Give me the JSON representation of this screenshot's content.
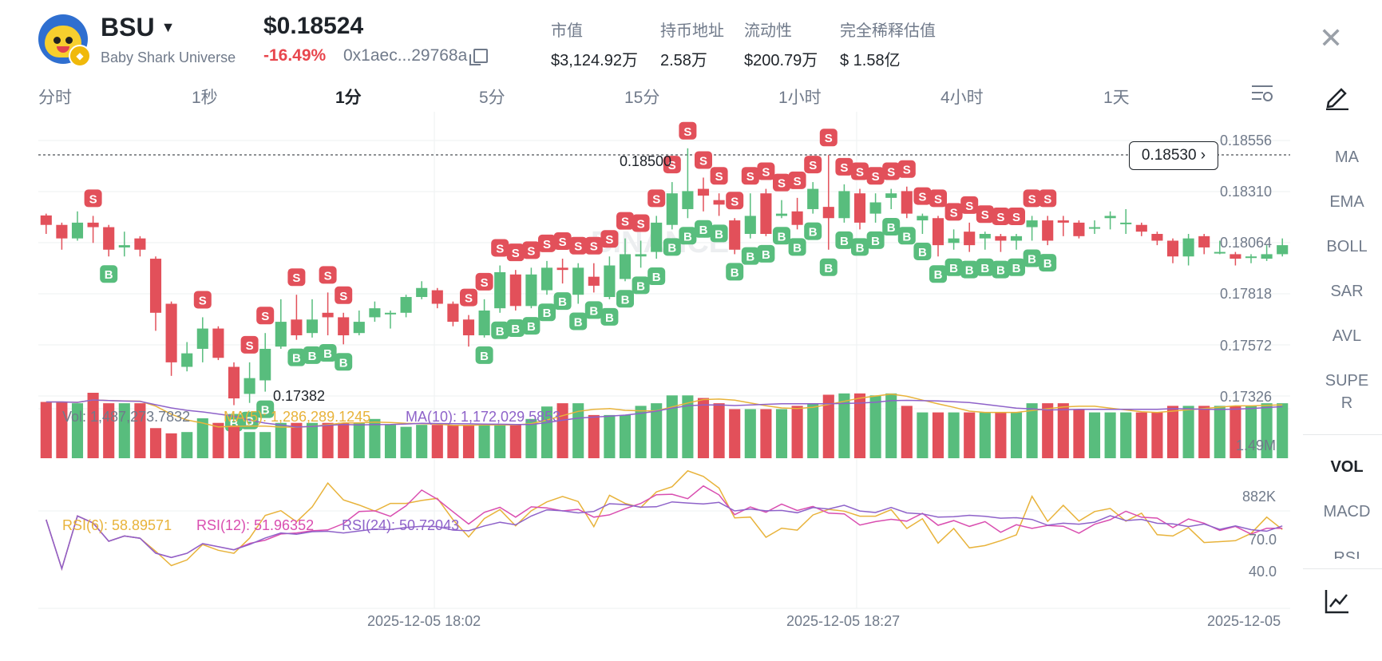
{
  "header": {
    "symbol": "BSU",
    "fullname": "Baby Shark Universe",
    "price": "$0.18524",
    "change": "-16.49%",
    "address": "0x1aec...29768a",
    "stats": [
      {
        "label": "市值",
        "value": "$3,124.92万"
      },
      {
        "label": "持币地址",
        "value": "2.58万"
      },
      {
        "label": "流动性",
        "value": "$200.79万"
      },
      {
        "label": "完全稀释估值",
        "value": "$ 1.58亿"
      }
    ]
  },
  "tabs": [
    "分时",
    "1秒",
    "1分",
    "5分",
    "15分",
    "1小时",
    "4小时",
    "1天"
  ],
  "active_tab": "1分",
  "side_indicators": [
    "MA",
    "EMA",
    "BOLL",
    "SAR",
    "AVL",
    "SUPE",
    "R"
  ],
  "sub_indicators": [
    "VOL",
    "MACD",
    "RSI"
  ],
  "chart": {
    "current_price_tag": "0.18530",
    "y_ticks": [
      "0.18556",
      "0.18310",
      "0.18064",
      "0.17818",
      "0.17572",
      "0.17326"
    ],
    "high_label": "0.18500",
    "low_label": "0.17382",
    "watermark": "BINANCE",
    "buy_marker": "B",
    "sell_marker": "S",
    "vol_text": {
      "vol": "Vol: 1,487,273.7832",
      "ma5": "MA(5): 1,286,289.1245",
      "ma10": "MA(10): 1,172,029.5853"
    },
    "vol_ticks": [
      "1.49M",
      "882K"
    ],
    "rsi_text": {
      "rsi6": "RSI(6): 58.89571",
      "rsi12": "RSI(12): 51.96352",
      "rsi24": "RSI(24): 50.72043"
    },
    "rsi_ticks": [
      "70.0",
      "40.0"
    ],
    "dates": [
      "2025-12-05 18:02",
      "2025-12-05 18:27",
      "2025-12-05"
    ]
  },
  "colors": {
    "up": "#58bd7d",
    "down": "#e2505a",
    "ma5": "#e8b33b",
    "ma10": "#8e62c9",
    "rsi12": "#d94eb0"
  },
  "chart_data": {
    "type": "candlestick",
    "candles": [
      [
        0.18232,
        0.1819,
        0.1824,
        0.1815
      ],
      [
        0.1819,
        0.1813,
        0.182,
        0.1808
      ],
      [
        0.1813,
        0.182,
        0.1825,
        0.1812
      ],
      [
        0.182,
        0.1818,
        0.1823,
        0.1811
      ],
      [
        0.1818,
        0.1808,
        0.1819,
        0.1805
      ],
      [
        0.1809,
        0.181,
        0.1816,
        0.1805
      ],
      [
        0.1813,
        0.1808,
        0.1814,
        0.1805
      ],
      [
        0.1804,
        0.178,
        0.1805,
        0.1772
      ],
      [
        0.1784,
        0.1758,
        0.1785,
        0.1752
      ],
      [
        0.1756,
        0.1762,
        0.1767,
        0.1754
      ],
      [
        0.1764,
        0.1773,
        0.1778,
        0.1758
      ],
      [
        0.1773,
        0.176,
        0.1774,
        0.1759
      ],
      [
        0.1756,
        0.1742,
        0.1758,
        0.1739
      ],
      [
        0.1744,
        0.1751,
        0.1758,
        0.174
      ],
      [
        0.175,
        0.1764,
        0.1771,
        0.1745
      ],
      [
        0.1765,
        0.1776,
        0.1786,
        0.1764
      ],
      [
        0.1777,
        0.177,
        0.1788,
        0.1768
      ],
      [
        0.1771,
        0.1777,
        0.1786,
        0.1769
      ],
      [
        0.178,
        0.1778,
        0.1789,
        0.177
      ],
      [
        0.1778,
        0.177,
        0.178,
        0.1766
      ],
      [
        0.1771,
        0.1776,
        0.1781,
        0.177
      ],
      [
        0.1778,
        0.1782,
        0.1785,
        0.1776
      ],
      [
        0.178,
        0.178,
        0.1781,
        0.1773
      ],
      [
        0.178,
        0.1787,
        0.1788,
        0.1778
      ],
      [
        0.1787,
        0.1791,
        0.1794,
        0.1786
      ],
      [
        0.179,
        0.1784,
        0.1791,
        0.1782
      ],
      [
        0.1784,
        0.1776,
        0.1785,
        0.1774
      ],
      [
        0.1777,
        0.177,
        0.1779,
        0.1765
      ],
      [
        0.177,
        0.1781,
        0.1786,
        0.1769
      ],
      [
        0.1782,
        0.1798,
        0.1801,
        0.178
      ],
      [
        0.1797,
        0.1783,
        0.1799,
        0.1781
      ],
      [
        0.1783,
        0.1797,
        0.18,
        0.1782
      ],
      [
        0.179,
        0.18,
        0.1803,
        0.1788
      ],
      [
        0.18,
        0.1799,
        0.1804,
        0.1793
      ],
      [
        0.1788,
        0.18,
        0.1802,
        0.1784
      ],
      [
        0.1796,
        0.1792,
        0.1802,
        0.1789
      ],
      [
        0.1787,
        0.1801,
        0.1805,
        0.1786
      ],
      [
        0.1795,
        0.1806,
        0.1813,
        0.1794
      ],
      [
        0.1805,
        0.1806,
        0.1812,
        0.18
      ],
      [
        0.1807,
        0.182,
        0.1823,
        0.1804
      ],
      [
        0.1819,
        0.1833,
        0.1838,
        0.1817
      ],
      [
        0.1826,
        0.1834,
        0.1853,
        0.1822
      ],
      [
        0.1835,
        0.1832,
        0.184,
        0.1825
      ],
      [
        0.183,
        0.1828,
        0.1833,
        0.1823
      ],
      [
        0.1821,
        0.1808,
        0.1822,
        0.1806
      ],
      [
        0.1815,
        0.1823,
        0.1833,
        0.1813
      ],
      [
        0.1833,
        0.1815,
        0.1835,
        0.1814
      ],
      [
        0.1823,
        0.1824,
        0.183,
        0.1822
      ],
      [
        0.1825,
        0.1819,
        0.1831,
        0.1817
      ],
      [
        0.1826,
        0.1835,
        0.1838,
        0.1824
      ],
      [
        0.1827,
        0.1822,
        0.185,
        0.1808
      ],
      [
        0.1822,
        0.1834,
        0.1837,
        0.182
      ],
      [
        0.1833,
        0.182,
        0.1835,
        0.1817
      ],
      [
        0.1824,
        0.1829,
        0.1833,
        0.182
      ],
      [
        0.1831,
        0.1833,
        0.1835,
        0.1826
      ],
      [
        0.1834,
        0.1824,
        0.1836,
        0.1822
      ],
      [
        0.1821,
        0.1823,
        0.1824,
        0.1815
      ],
      [
        0.1822,
        0.181,
        0.1823,
        0.1805
      ],
      [
        0.1811,
        0.1813,
        0.1817,
        0.1808
      ],
      [
        0.1816,
        0.181,
        0.182,
        0.1807
      ],
      [
        0.1813,
        0.1815,
        0.1816,
        0.1808
      ],
      [
        0.1814,
        0.1812,
        0.1815,
        0.1807
      ],
      [
        0.1812,
        0.1814,
        0.1815,
        0.1808
      ],
      [
        0.1818,
        0.1821,
        0.1823,
        0.1812
      ],
      [
        0.1821,
        0.1812,
        0.1823,
        0.181
      ],
      [
        0.1821,
        0.182,
        0.1823,
        0.1814
      ],
      [
        0.182,
        0.1814,
        0.1821,
        0.1813
      ],
      [
        0.1818,
        0.1818,
        0.1821,
        0.1815
      ],
      [
        0.1822,
        0.1823,
        0.1825,
        0.1817
      ],
      [
        0.182,
        0.182,
        0.1826,
        0.1815
      ],
      [
        0.1819,
        0.1816,
        0.182,
        0.1814
      ],
      [
        0.1815,
        0.1812,
        0.1816,
        0.181
      ],
      [
        0.1812,
        0.1805,
        0.1813,
        0.1802
      ],
      [
        0.1805,
        0.1813,
        0.1815,
        0.1801
      ],
      [
        0.1814,
        0.1809,
        0.1815,
        0.1806
      ],
      [
        0.1807,
        0.1807,
        0.1812,
        0.1806
      ],
      [
        0.1806,
        0.1804,
        0.1807,
        0.1801
      ],
      [
        0.1805,
        0.1805,
        0.1806,
        0.1802
      ],
      [
        0.1804,
        0.1806,
        0.181,
        0.1803
      ],
      [
        0.1806,
        0.181,
        0.1813,
        0.1805
      ]
    ],
    "volume_ratio": [
      0.86,
      0.86,
      0.84,
      1.0,
      0.84,
      0.84,
      0.84,
      0.46,
      0.38,
      0.4,
      0.61,
      0.54,
      0.5,
      0.4,
      0.4,
      0.54,
      0.54,
      0.54,
      0.54,
      0.54,
      0.54,
      0.6,
      0.51,
      0.48,
      0.51,
      0.51,
      0.51,
      0.51,
      0.51,
      0.51,
      0.51,
      0.6,
      0.79,
      0.84,
      0.84,
      0.66,
      0.66,
      0.66,
      0.8,
      0.84,
      0.96,
      0.96,
      0.92,
      0.84,
      0.75,
      0.75,
      0.75,
      0.75,
      0.8,
      0.84,
      0.97,
      0.99,
      0.99,
      0.96,
      0.99,
      0.8,
      0.7,
      0.7,
      0.7,
      0.7,
      0.7,
      0.7,
      0.7,
      0.84,
      0.84,
      0.84,
      0.75,
      0.7,
      0.7,
      0.7,
      0.7,
      0.7,
      0.8,
      0.8,
      0.8,
      0.8,
      0.8,
      0.8,
      0.84,
      0.84
    ]
  }
}
